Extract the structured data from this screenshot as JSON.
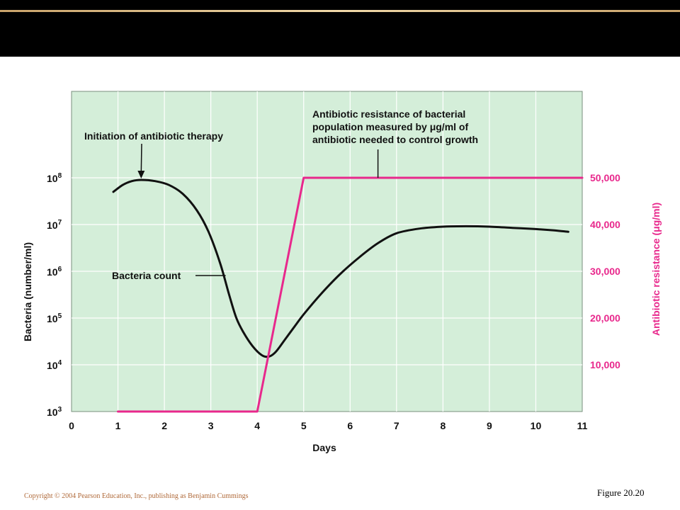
{
  "colors": {
    "background": "#ffffff",
    "header": "#000000",
    "header_line": "#e8c89a",
    "plot_bg": "#d4eed9",
    "grid": "#ffffff",
    "bacteria_line": "#111111",
    "resistance_line": "#e8288c",
    "footer_copyright": "#b06a3a"
  },
  "footer": {
    "copyright": "Copyright © 2004 Pearson Education, Inc., publishing as Benjamin Cummings",
    "figure_label": "Figure 20.20"
  },
  "chart_data": {
    "type": "line",
    "title": "",
    "xlabel": "Days",
    "ylabel_left": "Bacteria (number/ml)",
    "ylabel_right": "Antibiotic resistance (μg/ml)",
    "grid": true,
    "xlim": [
      0,
      11
    ],
    "x_ticks": [
      "0",
      "1",
      "2",
      "3",
      "4",
      "5",
      "6",
      "7",
      "8",
      "9",
      "10",
      "11"
    ],
    "left_axis": {
      "scale": "log",
      "ylim": [
        1000,
        100000000
      ],
      "tick_labels": [
        {
          "base": "10",
          "exp": "3"
        },
        {
          "base": "10",
          "exp": "4"
        },
        {
          "base": "10",
          "exp": "5"
        },
        {
          "base": "10",
          "exp": "6"
        },
        {
          "base": "10",
          "exp": "7"
        },
        {
          "base": "10",
          "exp": "8"
        }
      ]
    },
    "right_axis": {
      "scale": "linear",
      "ylim": [
        0,
        50000
      ],
      "tick_labels": [
        "10,000",
        "20,000",
        "30,000",
        "40,000",
        "50,000"
      ]
    },
    "series": [
      {
        "name": "Bacteria count",
        "axis": "left",
        "x": [
          0.9,
          1.1,
          1.3,
          1.5,
          1.8,
          2.1,
          2.4,
          2.7,
          2.95,
          3.2,
          3.4,
          3.55,
          3.7,
          3.9,
          4.1,
          4.25,
          4.4,
          4.6,
          4.8,
          5.0,
          5.4,
          5.8,
          6.2,
          6.6,
          7.0,
          7.5,
          8.0,
          8.5,
          9.0,
          9.5,
          10.0,
          10.4,
          10.7
        ],
        "y": [
          50000000,
          70000000,
          85000000,
          90000000,
          85000000,
          70000000,
          45000000,
          20000000,
          7000000,
          1500000,
          300000,
          100000,
          50000,
          25000,
          16000,
          15000,
          19000,
          35000,
          65000,
          120000,
          350000,
          900000,
          2000000,
          4000000,
          6500000,
          8200000,
          9000000,
          9200000,
          9000000,
          8500000,
          8000000,
          7500000,
          7000000
        ]
      },
      {
        "name": "",
        "axis": "right",
        "x": [
          1,
          4,
          5,
          11
        ],
        "y": [
          0,
          0,
          50000,
          50000
        ]
      }
    ],
    "annotations": [
      {
        "text_lines": [
          "Initiation of antibiotic therapy"
        ],
        "points_to": {
          "x": 1.5,
          "axis": "left",
          "y": 90000000
        }
      },
      {
        "text_lines": [
          "Antibiotic resistance of bacterial",
          "population measured by μg/ml of",
          "antibiotic needed to control growth"
        ],
        "points_to": {
          "x": 6.6,
          "axis": "right",
          "y": 50000
        }
      },
      {
        "text_lines": [
          "Bacteria count"
        ],
        "points_to": {
          "x": 3.35,
          "axis": "left",
          "y": 1500000
        }
      }
    ]
  }
}
